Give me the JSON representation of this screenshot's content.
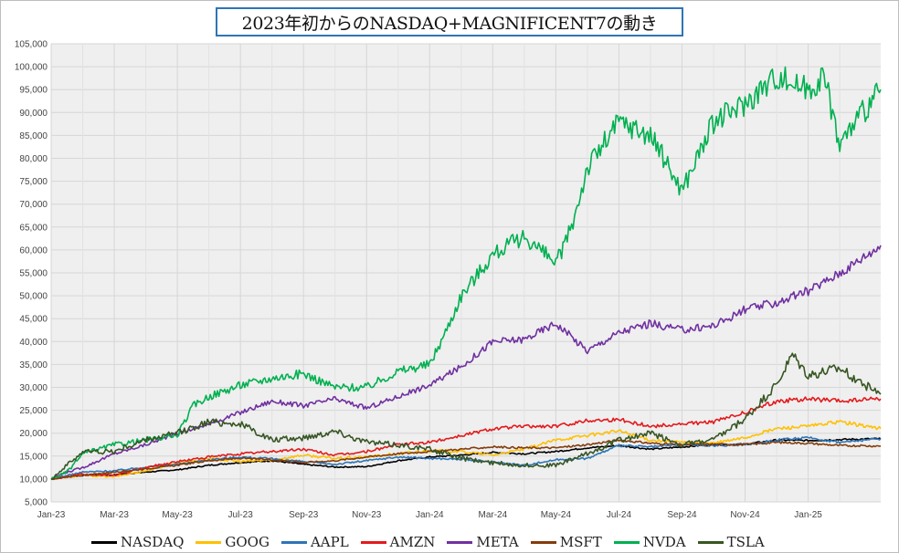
{
  "chart_data": {
    "type": "line",
    "title": "2023年初からのNASDAQ+MAGNIFICENT7の動き",
    "ylim": [
      5000,
      105000
    ],
    "y_ticks": [
      "5,000",
      "10,000",
      "15,000",
      "20,000",
      "25,000",
      "30,000",
      "35,000",
      "40,000",
      "45,000",
      "50,000",
      "55,000",
      "60,000",
      "65,000",
      "70,000",
      "75,000",
      "80,000",
      "85,000",
      "90,000",
      "95,000",
      "100,000",
      "105,000"
    ],
    "x_ticks": [
      "Jan-23",
      "Mar-23",
      "May-23",
      "Jul-23",
      "Sep-23",
      "Nov-23",
      "Jan-24",
      "Mar-24",
      "May-24",
      "Jul-24",
      "Sep-24",
      "Nov-24",
      "Jan-25"
    ],
    "x_months": [
      0,
      2,
      4,
      6,
      8,
      10,
      12,
      14,
      16,
      18,
      20,
      22,
      24
    ],
    "x_range_months": [
      0,
      26.3
    ],
    "grid": true,
    "legend_position": "bottom",
    "series": [
      {
        "name": "NASDAQ",
        "color": "#000000",
        "points": [
          [
            0,
            10000
          ],
          [
            1,
            10800
          ],
          [
            2,
            10900
          ],
          [
            3,
            11500
          ],
          [
            4,
            12000
          ],
          [
            5,
            13000
          ],
          [
            6,
            13600
          ],
          [
            7,
            14000
          ],
          [
            8,
            13200
          ],
          [
            9,
            12600
          ],
          [
            10,
            12700
          ],
          [
            11,
            14000
          ],
          [
            12,
            14800
          ],
          [
            13,
            15200
          ],
          [
            14,
            15800
          ],
          [
            15,
            15500
          ],
          [
            16,
            16000
          ],
          [
            17,
            16800
          ],
          [
            18,
            17300
          ],
          [
            19,
            16500
          ],
          [
            20,
            17000
          ],
          [
            21,
            17500
          ],
          [
            22,
            17600
          ],
          [
            23,
            18500
          ],
          [
            24,
            18400
          ],
          [
            25,
            18600
          ],
          [
            26.3,
            18800
          ]
        ]
      },
      {
        "name": "GOOG",
        "color": "#ffc000",
        "points": [
          [
            0,
            10000
          ],
          [
            1,
            10800
          ],
          [
            2,
            10500
          ],
          [
            3,
            11800
          ],
          [
            4,
            13500
          ],
          [
            5,
            14500
          ],
          [
            6,
            13800
          ],
          [
            7,
            14200
          ],
          [
            8,
            15200
          ],
          [
            9,
            14500
          ],
          [
            10,
            14800
          ],
          [
            11,
            15500
          ],
          [
            12,
            16200
          ],
          [
            13,
            16000
          ],
          [
            14,
            15200
          ],
          [
            15,
            16500
          ],
          [
            16,
            18500
          ],
          [
            17,
            19500
          ],
          [
            18,
            20500
          ],
          [
            19,
            18500
          ],
          [
            20,
            18000
          ],
          [
            21,
            17800
          ],
          [
            22,
            19000
          ],
          [
            23,
            21000
          ],
          [
            24,
            21500
          ],
          [
            25,
            22500
          ],
          [
            26.3,
            21000
          ]
        ]
      },
      {
        "name": "AAPL",
        "color": "#2e75b6",
        "points": [
          [
            0,
            10000
          ],
          [
            1,
            11500
          ],
          [
            2,
            11800
          ],
          [
            3,
            12600
          ],
          [
            4,
            13200
          ],
          [
            5,
            14200
          ],
          [
            6,
            14800
          ],
          [
            7,
            14400
          ],
          [
            8,
            13800
          ],
          [
            9,
            13200
          ],
          [
            10,
            14000
          ],
          [
            11,
            14800
          ],
          [
            12,
            14500
          ],
          [
            13,
            14300
          ],
          [
            14,
            13700
          ],
          [
            15,
            13000
          ],
          [
            16,
            14200
          ],
          [
            17,
            14500
          ],
          [
            18,
            17300
          ],
          [
            19,
            17000
          ],
          [
            20,
            17500
          ],
          [
            21,
            17300
          ],
          [
            22,
            17500
          ],
          [
            23,
            18500
          ],
          [
            24,
            19000
          ],
          [
            25,
            18000
          ],
          [
            26.3,
            18800
          ]
        ]
      },
      {
        "name": "AMZN",
        "color": "#e31a1c",
        "points": [
          [
            0,
            10000
          ],
          [
            1,
            11000
          ],
          [
            2,
            10800
          ],
          [
            3,
            12500
          ],
          [
            4,
            13800
          ],
          [
            5,
            14800
          ],
          [
            6,
            15500
          ],
          [
            7,
            16000
          ],
          [
            8,
            16500
          ],
          [
            9,
            15200
          ],
          [
            10,
            16000
          ],
          [
            11,
            17500
          ],
          [
            12,
            18000
          ],
          [
            13,
            19500
          ],
          [
            14,
            21000
          ],
          [
            15,
            21500
          ],
          [
            16,
            21500
          ],
          [
            17,
            22800
          ],
          [
            18,
            23000
          ],
          [
            19,
            21500
          ],
          [
            20,
            22000
          ],
          [
            21,
            22500
          ],
          [
            22,
            24500
          ],
          [
            23,
            27000
          ],
          [
            24,
            27500
          ],
          [
            25,
            27000
          ],
          [
            26.3,
            27500
          ]
        ]
      },
      {
        "name": "META",
        "color": "#7030a0",
        "points": [
          [
            0,
            10000
          ],
          [
            0.5,
            11500
          ],
          [
            1,
            12500
          ],
          [
            2,
            15500
          ],
          [
            3,
            17500
          ],
          [
            4,
            20000
          ],
          [
            5,
            22000
          ],
          [
            6,
            24500
          ],
          [
            7,
            27000
          ],
          [
            8,
            26000
          ],
          [
            9,
            27500
          ],
          [
            10,
            25500
          ],
          [
            11,
            28000
          ],
          [
            12,
            30500
          ],
          [
            13,
            34500
          ],
          [
            14,
            40000
          ],
          [
            15,
            40500
          ],
          [
            16,
            44000
          ],
          [
            17,
            38000
          ],
          [
            18,
            42000
          ],
          [
            19,
            44000
          ],
          [
            20,
            42500
          ],
          [
            21,
            43500
          ],
          [
            22,
            47000
          ],
          [
            23,
            48500
          ],
          [
            24,
            51000
          ],
          [
            25,
            55000
          ],
          [
            26.3,
            61000
          ]
        ]
      },
      {
        "name": "MSFT",
        "color": "#843c0c",
        "points": [
          [
            0,
            10000
          ],
          [
            1,
            10800
          ],
          [
            2,
            11500
          ],
          [
            3,
            12200
          ],
          [
            4,
            13000
          ],
          [
            5,
            14000
          ],
          [
            6,
            14500
          ],
          [
            7,
            14200
          ],
          [
            8,
            13600
          ],
          [
            9,
            14000
          ],
          [
            10,
            14800
          ],
          [
            11,
            15500
          ],
          [
            12,
            16000
          ],
          [
            13,
            16500
          ],
          [
            14,
            17000
          ],
          [
            15,
            16800
          ],
          [
            16,
            16800
          ],
          [
            17,
            17500
          ],
          [
            18,
            18500
          ],
          [
            19,
            17800
          ],
          [
            20,
            17500
          ],
          [
            21,
            17600
          ],
          [
            22,
            17500
          ],
          [
            23,
            18000
          ],
          [
            24,
            17800
          ],
          [
            25,
            17300
          ],
          [
            26.3,
            17200
          ]
        ]
      },
      {
        "name": "NVDA",
        "color": "#00b050",
        "points": [
          [
            0,
            10000
          ],
          [
            0.5,
            11500
          ],
          [
            1,
            15500
          ],
          [
            2,
            17500
          ],
          [
            3,
            18500
          ],
          [
            4,
            19500
          ],
          [
            4.5,
            26000
          ],
          [
            5,
            28000
          ],
          [
            6,
            30500
          ],
          [
            7,
            32000
          ],
          [
            8,
            33000
          ],
          [
            9,
            30000
          ],
          [
            10,
            30000
          ],
          [
            11,
            33500
          ],
          [
            12,
            35000
          ],
          [
            12.5,
            42000
          ],
          [
            13,
            50000
          ],
          [
            14,
            59000
          ],
          [
            15,
            63000
          ],
          [
            16,
            57000
          ],
          [
            16.5,
            65000
          ],
          [
            17,
            78000
          ],
          [
            18,
            88000
          ],
          [
            19,
            85000
          ],
          [
            20,
            73000
          ],
          [
            21,
            88000
          ],
          [
            22,
            92000
          ],
          [
            23,
            98000
          ],
          [
            24,
            95000
          ],
          [
            24.5,
            98000
          ],
          [
            25,
            83000
          ],
          [
            25.5,
            88000
          ],
          [
            26.3,
            95000
          ]
        ]
      },
      {
        "name": "TSLA",
        "color": "#375623",
        "points": [
          [
            0,
            10000
          ],
          [
            0.5,
            13000
          ],
          [
            1,
            16000
          ],
          [
            2,
            16000
          ],
          [
            3,
            18500
          ],
          [
            4,
            20000
          ],
          [
            5,
            22500
          ],
          [
            6,
            22000
          ],
          [
            7,
            18500
          ],
          [
            8,
            19000
          ],
          [
            9,
            20500
          ],
          [
            10,
            18000
          ],
          [
            11,
            17500
          ],
          [
            12,
            16500
          ],
          [
            13,
            14500
          ],
          [
            14,
            13500
          ],
          [
            15,
            13000
          ],
          [
            16,
            13000
          ],
          [
            17,
            15500
          ],
          [
            18,
            18500
          ],
          [
            19,
            20000
          ],
          [
            20,
            17500
          ],
          [
            21,
            18500
          ],
          [
            22,
            23000
          ],
          [
            23,
            30500
          ],
          [
            23.5,
            37000
          ],
          [
            24,
            32500
          ],
          [
            25,
            34000
          ],
          [
            26.3,
            28500
          ]
        ]
      }
    ]
  },
  "legend": [
    {
      "label": "NASDAQ",
      "color": "#000000"
    },
    {
      "label": "GOOG",
      "color": "#ffc000"
    },
    {
      "label": "AAPL",
      "color": "#2e75b6"
    },
    {
      "label": "AMZN",
      "color": "#e31a1c"
    },
    {
      "label": "META",
      "color": "#7030a0"
    },
    {
      "label": "MSFT",
      "color": "#843c0c"
    },
    {
      "label": "NVDA",
      "color": "#00b050"
    },
    {
      "label": "TSLA",
      "color": "#375623"
    }
  ]
}
